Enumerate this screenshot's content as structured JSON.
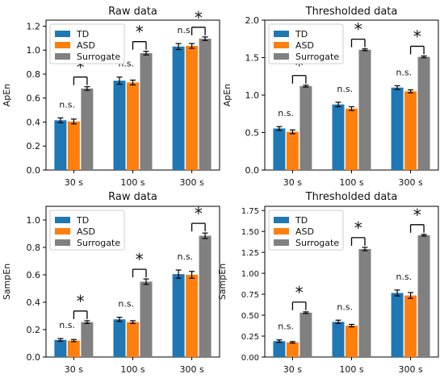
{
  "figure": {
    "legend_labels": [
      "TD",
      "ASD",
      "Surrogate"
    ],
    "significance_labels": {
      "ns": "n.s.",
      "star": "*"
    },
    "colors": {
      "TD": "#1f77b4",
      "ASD": "#ff7f0e",
      "Surrogate": "#808080",
      "axis": "#000000"
    }
  },
  "chart_data": [
    {
      "type": "bar",
      "title": "Raw data",
      "xlabel": "",
      "ylabel": "ApEn",
      "categories": [
        "30 s",
        "100 s",
        "300 s"
      ],
      "ylim": [
        0,
        1.25
      ],
      "yticks": [
        0.0,
        0.2,
        0.4,
        0.6,
        0.8,
        1.0,
        1.2
      ],
      "ytick_labels": [
        "0.0",
        "0.2",
        "0.4",
        "0.6",
        "0.8",
        "1.0",
        "1.2"
      ],
      "legend_position": "top-left",
      "series": [
        {
          "name": "TD",
          "values": [
            0.415,
            0.745,
            1.03
          ],
          "errors": [
            0.02,
            0.03,
            0.025
          ]
        },
        {
          "name": "ASD",
          "values": [
            0.405,
            0.73,
            1.035
          ],
          "errors": [
            0.02,
            0.02,
            0.02
          ]
        },
        {
          "name": "Surrogate",
          "values": [
            0.68,
            0.975,
            1.095
          ],
          "errors": [
            0.015,
            0.015,
            0.015
          ]
        }
      ],
      "annotations": [
        {
          "category": "30 s",
          "tdasd": "n.s.",
          "surrogate": "*"
        },
        {
          "category": "100 s",
          "tdasd": "n.s.",
          "surrogate": "*"
        },
        {
          "category": "300 s",
          "tdasd": "n.s.",
          "surrogate": "*"
        }
      ]
    },
    {
      "type": "bar",
      "title": "Thresholded data",
      "xlabel": "",
      "ylabel": "ApEn",
      "categories": [
        "30 s",
        "100 s",
        "300 s"
      ],
      "ylim": [
        0,
        2.0
      ],
      "yticks": [
        0.0,
        0.5,
        1.0,
        1.5,
        2.0
      ],
      "ytick_labels": [
        "0.0",
        "0.5",
        "1.0",
        "1.5",
        "2.0"
      ],
      "legend_position": "top-left",
      "series": [
        {
          "name": "TD",
          "values": [
            0.555,
            0.875,
            1.1
          ],
          "errors": [
            0.025,
            0.03,
            0.025
          ]
        },
        {
          "name": "ASD",
          "values": [
            0.51,
            0.82,
            1.05
          ],
          "errors": [
            0.025,
            0.025,
            0.02
          ]
        },
        {
          "name": "Surrogate",
          "values": [
            1.12,
            1.605,
            1.51
          ],
          "errors": [
            0.012,
            0.012,
            0.012
          ]
        }
      ],
      "annotations": [
        {
          "category": "30 s",
          "tdasd": "n.s.",
          "surrogate": "*"
        },
        {
          "category": "100 s",
          "tdasd": "n.s.",
          "surrogate": "*"
        },
        {
          "category": "300 s",
          "tdasd": "n.s.",
          "surrogate": "*"
        }
      ]
    },
    {
      "type": "bar",
      "title": "Raw data",
      "xlabel": "",
      "ylabel": "SampEn",
      "categories": [
        "30 s",
        "100 s",
        "300 s"
      ],
      "ylim": [
        0,
        1.1
      ],
      "yticks": [
        0.0,
        0.2,
        0.4,
        0.6,
        0.8,
        1.0
      ],
      "ytick_labels": [
        "0.0",
        "0.2",
        "0.4",
        "0.6",
        "0.8",
        "1.0"
      ],
      "legend_position": "top-left",
      "series": [
        {
          "name": "TD",
          "values": [
            0.125,
            0.275,
            0.605
          ],
          "errors": [
            0.01,
            0.015,
            0.03
          ]
        },
        {
          "name": "ASD",
          "values": [
            0.12,
            0.255,
            0.6
          ],
          "errors": [
            0.008,
            0.01,
            0.025
          ]
        },
        {
          "name": "Surrogate",
          "values": [
            0.255,
            0.55,
            0.885
          ],
          "errors": [
            0.01,
            0.02,
            0.02
          ]
        }
      ],
      "annotations": [
        {
          "category": "30 s",
          "tdasd": "n.s.",
          "surrogate": "*"
        },
        {
          "category": "100 s",
          "tdasd": "n.s.",
          "surrogate": "*"
        },
        {
          "category": "300 s",
          "tdasd": "n.s.",
          "surrogate": "*"
        }
      ]
    },
    {
      "type": "bar",
      "title": "Thresholded data",
      "xlabel": "",
      "ylabel": "SampEn",
      "categories": [
        "30 s",
        "100 s",
        "300 s"
      ],
      "ylim": [
        0,
        1.8
      ],
      "yticks": [
        0.0,
        0.25,
        0.5,
        0.75,
        1.0,
        1.25,
        1.5,
        1.75
      ],
      "ytick_labels": [
        "0.00",
        "0.25",
        "0.50",
        "0.75",
        "1.00",
        "1.25",
        "1.50",
        "1.75"
      ],
      "legend_position": "top-left",
      "series": [
        {
          "name": "TD",
          "values": [
            0.19,
            0.42,
            0.765
          ],
          "errors": [
            0.015,
            0.02,
            0.035
          ]
        },
        {
          "name": "ASD",
          "values": [
            0.175,
            0.375,
            0.735
          ],
          "errors": [
            0.01,
            0.015,
            0.035
          ]
        },
        {
          "name": "Surrogate",
          "values": [
            0.53,
            1.29,
            1.455
          ],
          "errors": [
            0.01,
            0.02,
            0.01
          ]
        }
      ],
      "annotations": [
        {
          "category": "30 s",
          "tdasd": "n.s.",
          "surrogate": "*"
        },
        {
          "category": "100 s",
          "tdasd": "n.s.",
          "surrogate": "*"
        },
        {
          "category": "300 s",
          "tdasd": "n.s.",
          "surrogate": "*"
        }
      ]
    }
  ]
}
